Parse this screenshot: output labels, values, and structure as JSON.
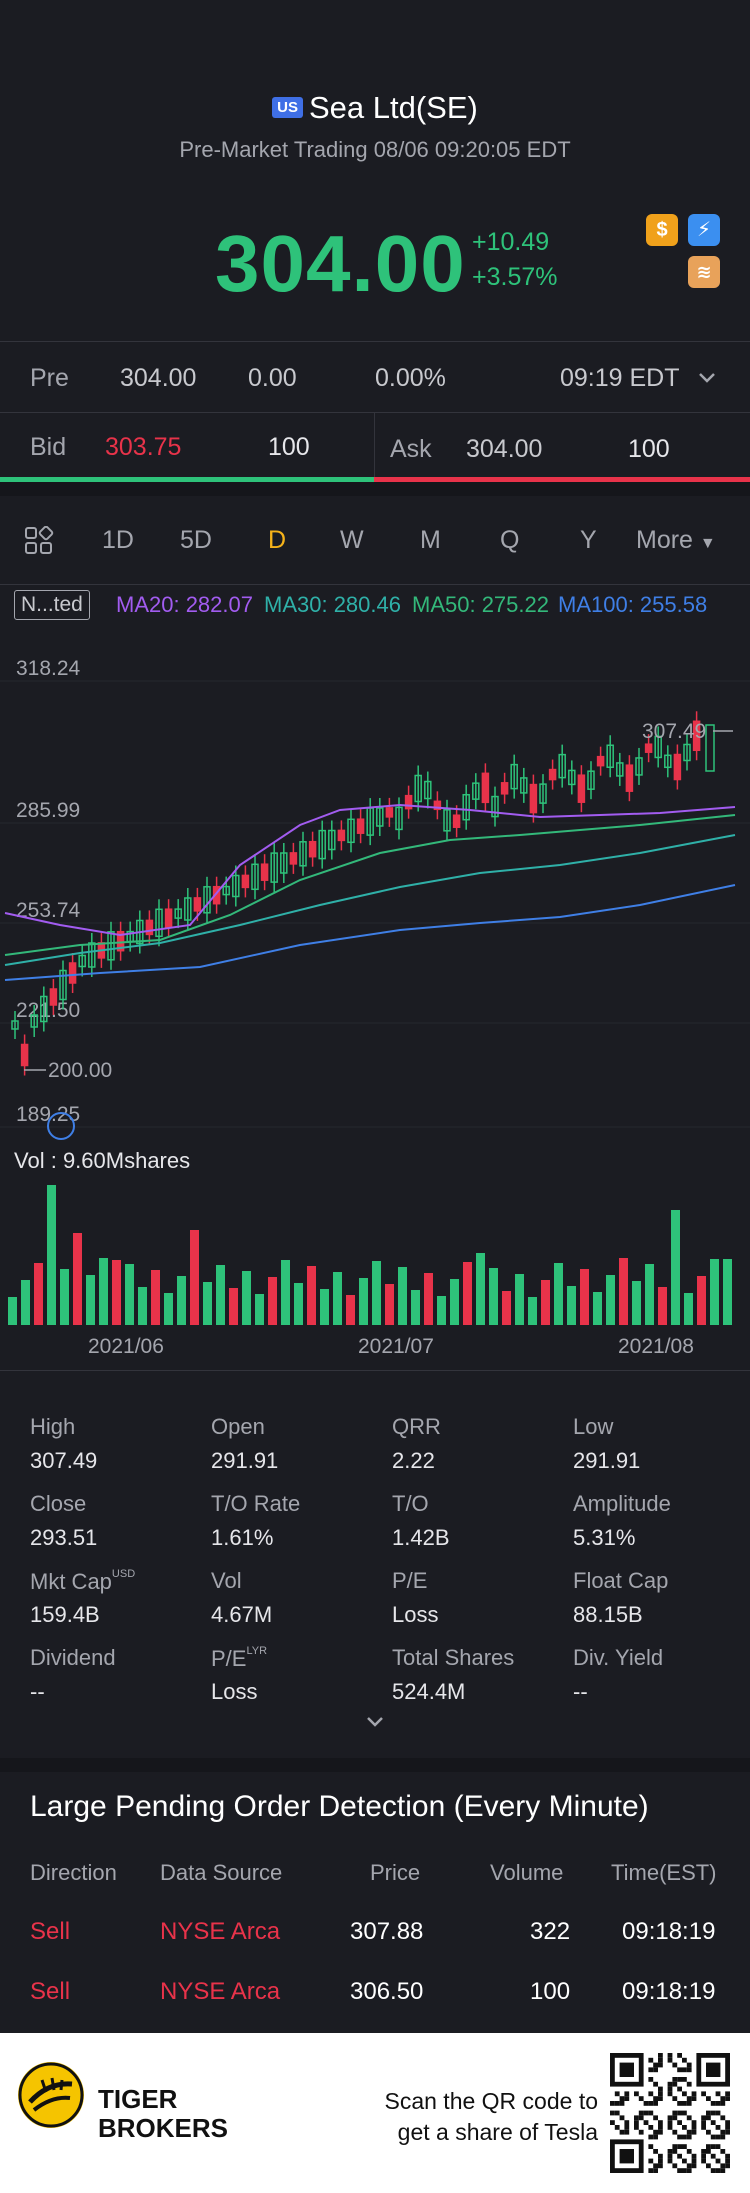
{
  "header": {
    "market_badge": "US",
    "title": "Sea Ltd(SE)",
    "subtitle": "Pre-Market Trading 08/06 09:20:05 EDT",
    "price": "304.00",
    "change": "+10.49",
    "change_pct": "+3.57%",
    "icons": [
      "dollar-icon",
      "lightning-icon",
      "layers-icon"
    ]
  },
  "pre": {
    "label": "Pre",
    "price": "304.00",
    "change": "0.00",
    "change_pct": "0.00%",
    "time": "09:19 EDT"
  },
  "bidask": {
    "bid_label": "Bid",
    "bid_price": "303.75",
    "bid_size": "100",
    "ask_label": "Ask",
    "ask_price": "304.00",
    "ask_size": "100"
  },
  "tabs": {
    "items": [
      "1D",
      "5D",
      "D",
      "W",
      "M",
      "Q",
      "Y",
      "More"
    ],
    "active": "D"
  },
  "indicators": {
    "label": "N...ted",
    "ma20": "MA20: 282.07",
    "ma30": "MA30: 280.46",
    "ma50": "MA50: 275.22",
    "ma100": "MA100: 255.58"
  },
  "chart_data": {
    "type": "candlestick",
    "y_ticks": [
      "318.24",
      "285.99",
      "253.74",
      "221.50",
      "189.25"
    ],
    "high_marker": "307.49",
    "low_marker": "200.00",
    "x_ticks": [
      "2021/06",
      "2021/07",
      "2021/08"
    ],
    "volume_label": "Vol",
    "volume_value": "9.60Mshares",
    "colors": {
      "up": "#2ec27a",
      "down": "#e8334a",
      "ma20": "#a25cf0",
      "ma30": "#2fb0a8",
      "ma50": "#33b87a",
      "ma100": "#3f7fe6"
    }
  },
  "stats": [
    {
      "label": "High",
      "value": "307.49"
    },
    {
      "label": "Open",
      "value": "291.91"
    },
    {
      "label": "QRR",
      "value": "2.22"
    },
    {
      "label": "Low",
      "value": "291.91"
    },
    {
      "label": "Close",
      "value": "293.51"
    },
    {
      "label": "T/O Rate",
      "value": "1.61%"
    },
    {
      "label": "T/O",
      "value": "1.42B"
    },
    {
      "label": "Amplitude",
      "value": "5.31%"
    },
    {
      "label": "Mkt Cap",
      "value": "159.4B",
      "sup": "USD"
    },
    {
      "label": "Vol",
      "value": "4.67M"
    },
    {
      "label": "P/E",
      "value": "Loss"
    },
    {
      "label": "Float Cap",
      "value": "88.15B"
    },
    {
      "label": "Dividend",
      "value": "--"
    },
    {
      "label": "P/E",
      "value": "Loss",
      "sup": "LYR"
    },
    {
      "label": "Total Shares",
      "value": "524.4M"
    },
    {
      "label": "Div. Yield",
      "value": "--"
    }
  ],
  "pending": {
    "title": "Large Pending Order Detection (Every Minute)",
    "headers": [
      "Direction",
      "Data Source",
      "Price",
      "Volume",
      "Time(EST)"
    ],
    "rows": [
      {
        "direction": "Sell",
        "source": "NYSE Arca",
        "price": "307.88",
        "volume": "322",
        "time": "09:18:19"
      },
      {
        "direction": "Sell",
        "source": "NYSE Arca",
        "price": "306.50",
        "volume": "100",
        "time": "09:18:19"
      }
    ]
  },
  "footer": {
    "brand_line1": "TIGER",
    "brand_line2": "BROKERS",
    "qr_line1": "Scan the QR code to",
    "qr_line2": "get a share of Tesla"
  }
}
